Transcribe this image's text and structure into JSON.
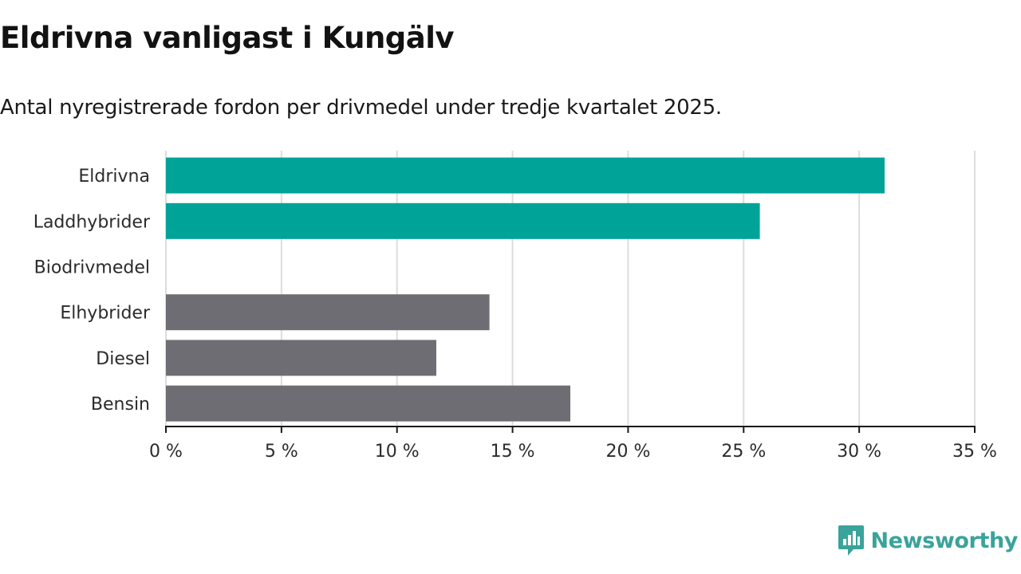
{
  "chart_data": {
    "type": "bar",
    "orientation": "horizontal",
    "title": "Eldrivna vanligast i Kungälv",
    "subtitle": "Antal nyregistrerade fordon per drivmedel under tredje kvartalet 2025.",
    "categories": [
      "Eldrivna",
      "Laddhybrider",
      "Biodrivmedel",
      "Elhybrider",
      "Diesel",
      "Bensin"
    ],
    "values": [
      31.1,
      25.7,
      0,
      14.0,
      11.7,
      17.5
    ],
    "bar_colors": [
      "#00a398",
      "#00a398",
      "#6e6d73",
      "#6e6d73",
      "#6e6d73",
      "#6e6d73"
    ],
    "xlim": [
      0,
      35
    ],
    "xticks": [
      0,
      5,
      10,
      15,
      20,
      25,
      30,
      35
    ],
    "xtick_labels": [
      "0 %",
      "5 %",
      "10 %",
      "15 %",
      "20 %",
      "25 %",
      "30 %",
      "35 %"
    ],
    "xlabel": "",
    "ylabel": "",
    "grid": "vertical",
    "gridline_color": "#dddddd",
    "axis_color": "#1a1a1a"
  },
  "branding": {
    "name": "Newsworthy",
    "icon": "newsworthy-logo-icon",
    "color": "#3aa39a"
  }
}
